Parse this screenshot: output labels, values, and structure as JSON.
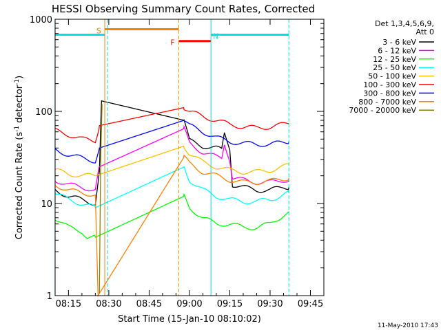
{
  "chart_data": {
    "type": "line",
    "title": "HESSI Observing Summary Count Rates, Corrected",
    "xlabel": "Start Time (15-Jan-10 08:10:02)",
    "ylabel_main": "Corrected Count Rate (s",
    "ylabel_sup1": "-1",
    "ylabel_mid": " detector",
    "ylabel_sup2": "-1",
    "ylabel_end": ")",
    "xlim": [
      "08:10:02",
      "09:50:00"
    ],
    "ylim": [
      1,
      1000
    ],
    "yscale": "log",
    "x_ticks": [
      "08:15",
      "08:30",
      "08:45",
      "09:00",
      "09:15",
      "09:30",
      "09:45"
    ],
    "x_tick_minutes": [
      15,
      30,
      45,
      60,
      75,
      90,
      105
    ],
    "y_ticks": [
      "1",
      "10",
      "100",
      "1000"
    ],
    "y_tick_values": [
      1,
      10,
      100,
      1000
    ],
    "legend_header_1": "Det 1,3,4,5,6,9,",
    "legend_header_2": "Att 0",
    "legend_placement": "right",
    "timestamp": "11-May-2010 17:43",
    "series": [
      {
        "name": "3 - 6 keV",
        "color": "#000000",
        "x": [
          10,
          15,
          20,
          25,
          26.5,
          27.3,
          58,
          60,
          65,
          70,
          72,
          73,
          75,
          76,
          80,
          85,
          90,
          95,
          97
        ],
        "y": [
          14,
          12,
          11,
          10,
          22,
          130,
          80,
          48,
          42,
          40,
          38,
          58,
          40,
          16,
          15,
          14,
          14,
          15,
          15
        ]
      },
      {
        "name": "6 - 12 keV",
        "color": "#ff00ff",
        "x": [
          10,
          15,
          20,
          25,
          26.5,
          58,
          60,
          65,
          70,
          72,
          73,
          75,
          76,
          80,
          85,
          90,
          95,
          97
        ],
        "y": [
          18,
          16,
          15,
          14,
          25,
          65,
          45,
          36,
          32,
          31,
          45,
          30,
          19,
          18,
          17,
          17,
          18,
          18
        ]
      },
      {
        "name": "12 - 25 keV",
        "color": "#00ff00",
        "x": [
          10,
          15,
          20,
          22,
          25,
          58,
          60,
          65,
          70,
          75,
          80,
          85,
          90,
          95,
          97
        ],
        "y": [
          7,
          5.5,
          5,
          4.3,
          4.3,
          12,
          9,
          7,
          6,
          6,
          5.5,
          5.5,
          6,
          7.5,
          8
        ]
      },
      {
        "name": "25 - 50 keV",
        "color": "#00ffff",
        "x": [
          10,
          15,
          20,
          25,
          58,
          60,
          65,
          70,
          75,
          80,
          85,
          90,
          95,
          97
        ],
        "y": [
          13,
          11,
          10,
          9,
          25,
          18,
          14,
          12,
          11,
          10.5,
          10.5,
          11,
          12.5,
          13
        ]
      },
      {
        "name": "50 - 100 keV",
        "color": "#ffc000",
        "x": [
          10,
          15,
          20,
          25,
          58,
          60,
          65,
          70,
          75,
          80,
          85,
          90,
          95,
          97
        ],
        "y": [
          23,
          21,
          20,
          20,
          42,
          35,
          28,
          25,
          23,
          22,
          22,
          23,
          25,
          26
        ]
      },
      {
        "name": "100 - 300 keV",
        "color": "#ff0000",
        "x": [
          10,
          15,
          20,
          25,
          26.5,
          58,
          60,
          65,
          70,
          75,
          80,
          85,
          90,
          95,
          97
        ],
        "y": [
          62,
          56,
          50,
          48,
          70,
          110,
          100,
          88,
          80,
          72,
          68,
          66,
          68,
          72,
          74
        ]
      },
      {
        "name": "300 - 800 keV",
        "color": "#0000ff",
        "x": [
          10,
          15,
          20,
          25,
          26.5,
          58,
          60,
          65,
          70,
          75,
          80,
          85,
          90,
          95,
          97
        ],
        "y": [
          38,
          34,
          31,
          29,
          40,
          80,
          70,
          60,
          52,
          47,
          45,
          44,
          44,
          46,
          47
        ]
      },
      {
        "name": "800 - 7000 keV",
        "color": "#ff8000",
        "x": [
          10,
          15,
          20,
          25,
          26,
          58,
          60,
          65,
          70,
          75,
          80,
          85,
          90,
          95,
          97
        ],
        "y": [
          16,
          14,
          13,
          12.5,
          1,
          32,
          27,
          22,
          20,
          18,
          17,
          17,
          17.5,
          18.5,
          19
        ]
      },
      {
        "name": "7000 - 20000 keV",
        "color": "#808000",
        "x": [
          26.5,
          27,
          27.5
        ],
        "y": [
          1,
          30,
          120
        ]
      }
    ],
    "bars": [
      {
        "label": "",
        "color": "#00e0e0",
        "x_start": 10,
        "x_end": 28.5,
        "y": 680
      },
      {
        "label": "S",
        "color": "#ff8000",
        "x_start": 28.5,
        "x_end": 56,
        "y": 780
      },
      {
        "label": "F",
        "color": "#ff0000",
        "x_start": 56,
        "x_end": 68,
        "y": 580
      },
      {
        "label": "N",
        "color": "#00e0e0",
        "x_start": 68,
        "x_end": 97,
        "y": 680
      }
    ],
    "vlines": [
      {
        "x": 10,
        "color": "#00e0e0",
        "style": "solid"
      },
      {
        "x": 28.5,
        "color": "#ff8000",
        "style": "solid"
      },
      {
        "x": 29.5,
        "color": "#00e0e0",
        "style": "dashed"
      },
      {
        "x": 56,
        "color": "#ff8000",
        "style": "dashed"
      },
      {
        "x": 68,
        "color": "#00e0e0",
        "style": "solid"
      },
      {
        "x": 97,
        "color": "#00e0e0",
        "style": "dashed"
      }
    ]
  }
}
